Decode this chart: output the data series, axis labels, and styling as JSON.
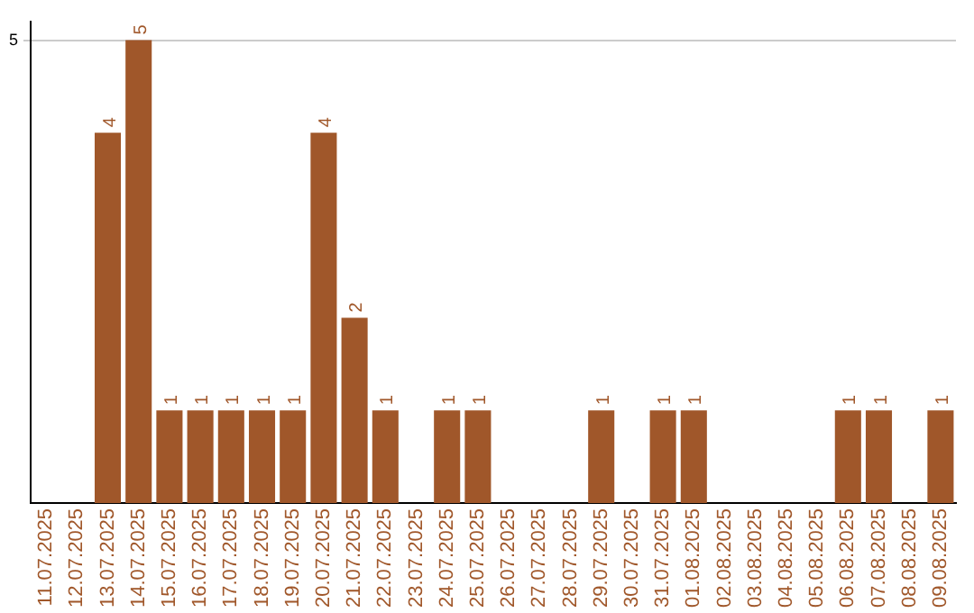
{
  "chart_data": {
    "type": "bar",
    "categories": [
      "11.07.2025",
      "12.07.2025",
      "13.07.2025",
      "14.07.2025",
      "15.07.2025",
      "16.07.2025",
      "17.07.2025",
      "18.07.2025",
      "19.07.2025",
      "20.07.2025",
      "21.07.2025",
      "22.07.2025",
      "23.07.2025",
      "24.07.2025",
      "25.07.2025",
      "26.07.2025",
      "27.07.2025",
      "28.07.2025",
      "29.07.2025",
      "30.07.2025",
      "31.07.2025",
      "01.08.2025",
      "02.08.2025",
      "03.08.2025",
      "04.08.2025",
      "05.08.2025",
      "06.08.2025",
      "07.08.2025",
      "08.08.2025",
      "09.08.2025"
    ],
    "values": [
      null,
      null,
      4,
      5,
      1,
      1,
      1,
      1,
      1,
      4,
      2,
      1,
      null,
      1,
      1,
      null,
      null,
      null,
      1,
      null,
      1,
      1,
      null,
      null,
      null,
      null,
      1,
      1,
      null,
      1
    ],
    "color": "#a0572a",
    "ylim": [
      0,
      5.2
    ],
    "yticks": [
      5
    ],
    "grid": "y",
    "data_labels": true,
    "legend": false
  }
}
